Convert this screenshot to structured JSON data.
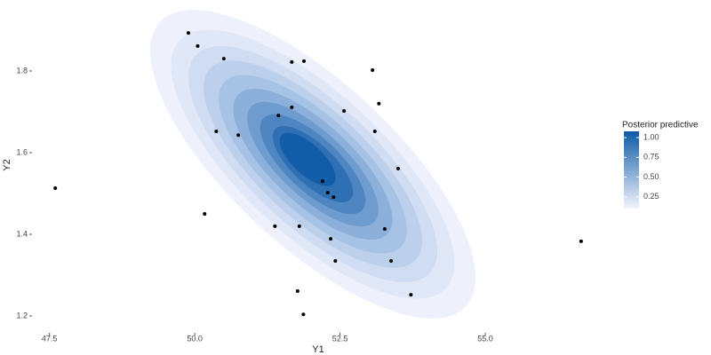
{
  "chart_data": {
    "type": "scatter",
    "x_label": "Y1",
    "y_label": "Y2",
    "x": [
      47.6,
      49.89,
      50.05,
      50.5,
      50.37,
      50.75,
      50.17,
      51.38,
      51.44,
      51.67,
      51.88,
      51.67,
      51.8,
      51.77,
      51.87,
      52.2,
      52.29,
      52.39,
      52.34,
      52.42,
      52.57,
      53.06,
      53.17,
      53.1,
      53.27,
      53.5,
      53.38,
      53.72,
      56.65
    ],
    "y": [
      1.513,
      1.893,
      1.861,
      1.83,
      1.652,
      1.643,
      1.45,
      1.42,
      1.691,
      1.822,
      1.824,
      1.711,
      1.42,
      1.261,
      1.204,
      1.53,
      1.502,
      1.491,
      1.389,
      1.335,
      1.702,
      1.802,
      1.72,
      1.652,
      1.413,
      1.561,
      1.335,
      1.252,
      1.383
    ],
    "point_color": "#000000",
    "xlim": [
      47.26,
      57.05
    ],
    "ylim": [
      1.148,
      1.952
    ],
    "xticks": [
      47.5,
      {
        "value": 50,
        "label": "50.0"
      },
      52.5,
      {
        "value": 55,
        "label": "55.0"
      }
    ],
    "yticks": [
      1.2,
      1.4,
      1.6,
      1.8
    ],
    "legend": {
      "title": "Posterior predictive",
      "lim": [
        0.1,
        1.08
      ],
      "ticks": [
        {
          "value": 1,
          "label": "1.00"
        },
        {
          "value": 0.75,
          "label": "0.75"
        },
        {
          "value": 0.5,
          "label": "0.50"
        },
        {
          "value": 0.25,
          "label": "0.25"
        }
      ],
      "colors": [
        "#f1f4fd",
        "#0e5aa6"
      ]
    }
  }
}
